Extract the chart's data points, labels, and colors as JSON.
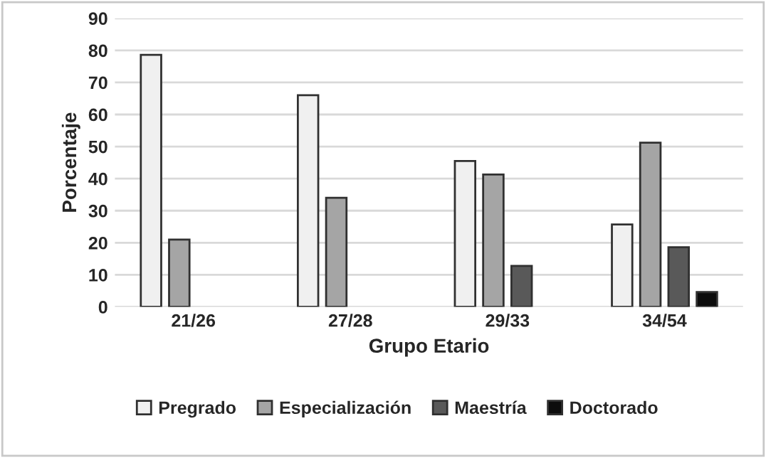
{
  "chart_data": {
    "type": "bar",
    "xlabel": "Grupo Etario",
    "ylabel": "Porcentaje",
    "categories": [
      "21/26",
      "27/28",
      "29/33",
      "34/54"
    ],
    "series": [
      {
        "name": "Pregrado",
        "color": "#f0f0f0",
        "values": [
          78.6,
          66,
          45.5,
          25.7
        ]
      },
      {
        "name": "Especialización",
        "color": "#a5a5a5",
        "values": [
          21,
          34,
          41.3,
          51.2
        ]
      },
      {
        "name": "Maestría",
        "color": "#595959",
        "values": [
          null,
          null,
          12.8,
          18.6
        ]
      },
      {
        "name": "Doctorado",
        "color": "#0d0d0d",
        "values": [
          null,
          null,
          null,
          4.6
        ]
      }
    ],
    "ylim": [
      0,
      90
    ],
    "yticks": [
      0,
      10,
      20,
      30,
      40,
      50,
      60,
      70,
      80,
      90
    ],
    "grid": "y",
    "legend": "bottom"
  }
}
